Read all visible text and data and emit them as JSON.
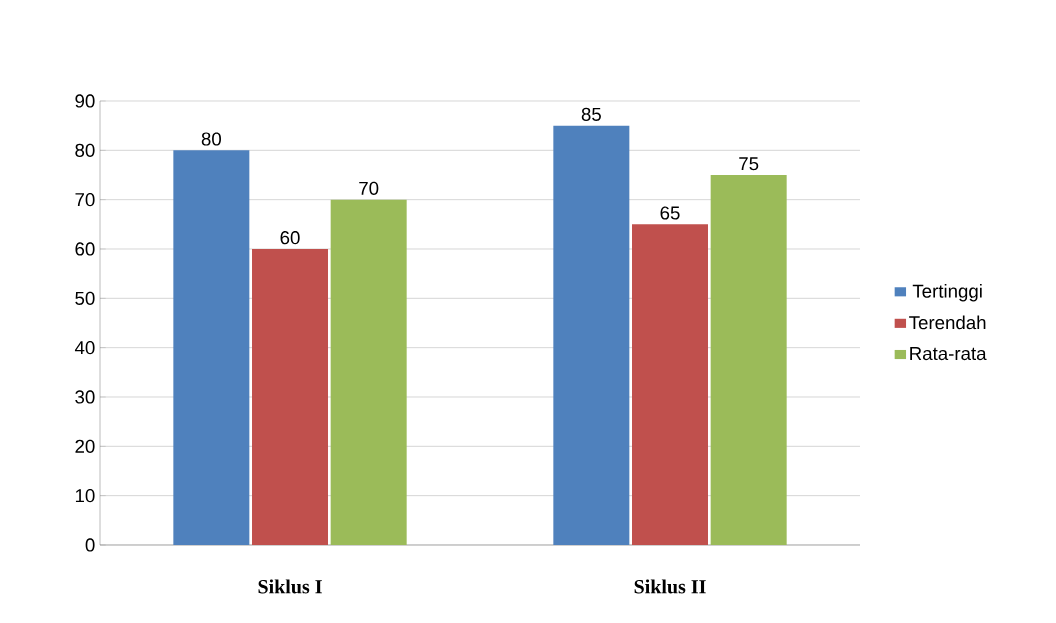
{
  "chart_data": {
    "type": "bar",
    "categories": [
      "Siklus I",
      "Siklus II"
    ],
    "series": [
      {
        "name": "Tertinggi",
        "color": "#4f81bd",
        "values": [
          80,
          85
        ]
      },
      {
        "name": "Terendah",
        "color": "#c0504d",
        "values": [
          60,
          65
        ]
      },
      {
        "name": "Rata-rata",
        "color": "#9bbb59",
        "values": [
          70,
          75
        ]
      }
    ],
    "ylim": [
      0,
      90
    ],
    "yticks": [
      0,
      10,
      20,
      30,
      40,
      50,
      60,
      70,
      80,
      90
    ],
    "grid": "y",
    "legend": "right",
    "data_labels": true
  }
}
